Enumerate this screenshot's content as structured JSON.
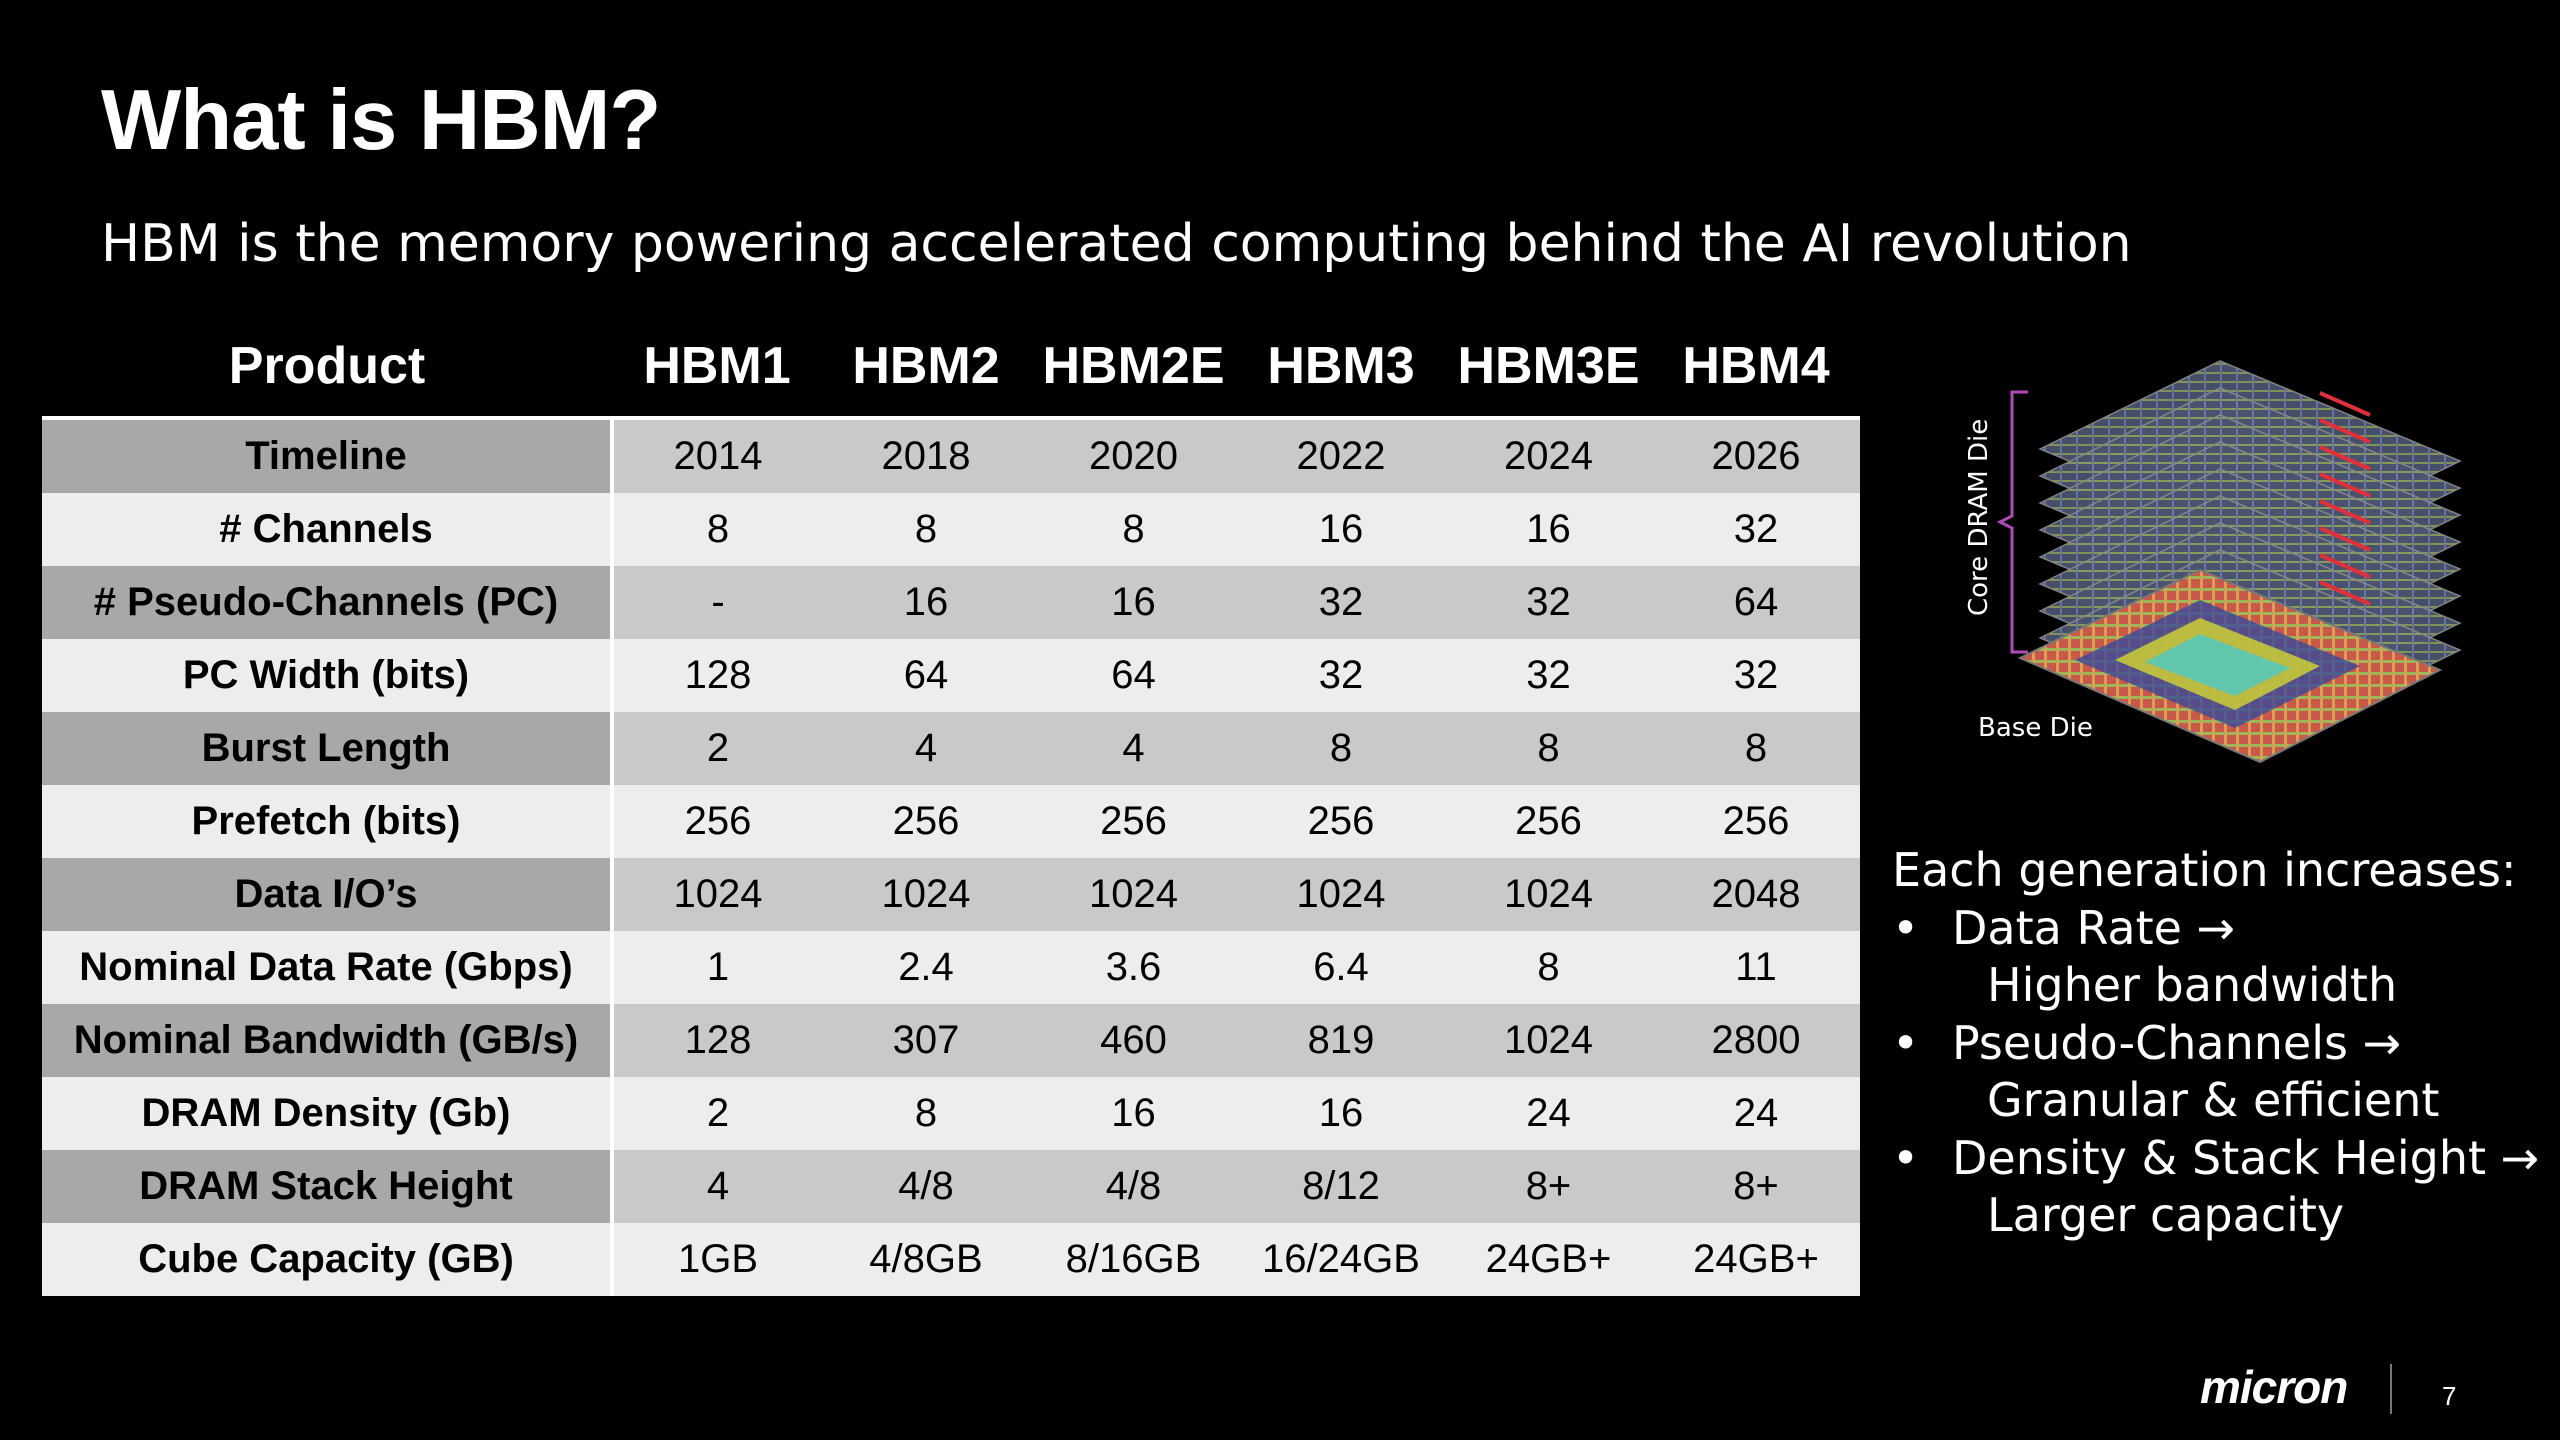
{
  "title": "What is HBM?",
  "subtitle": "HBM is the memory powering accelerated computing behind the AI revolution",
  "table": {
    "header": [
      "Product",
      "HBM1",
      "HBM2",
      "HBM2E",
      "HBM3",
      "HBM3E",
      "HBM4"
    ],
    "rows": [
      {
        "label": "Timeline",
        "values": [
          "2014",
          "2018",
          "2020",
          "2022",
          "2024",
          "2026"
        ]
      },
      {
        "label": "# Channels",
        "values": [
          "8",
          "8",
          "8",
          "16",
          "16",
          "32"
        ]
      },
      {
        "label": "# Pseudo-Channels (PC)",
        "values": [
          "-",
          "16",
          "16",
          "32",
          "32",
          "64"
        ]
      },
      {
        "label": "PC Width (bits)",
        "values": [
          "128",
          "64",
          "64",
          "32",
          "32",
          "32"
        ]
      },
      {
        "label": "Burst Length",
        "values": [
          "2",
          "4",
          "4",
          "8",
          "8",
          "8"
        ]
      },
      {
        "label": "Prefetch (bits)",
        "values": [
          "256",
          "256",
          "256",
          "256",
          "256",
          "256"
        ]
      },
      {
        "label": "Data I/O’s",
        "values": [
          "1024",
          "1024",
          "1024",
          "1024",
          "1024",
          "2048"
        ]
      },
      {
        "label": "Nominal Data Rate (Gbps)",
        "values": [
          "1",
          "2.4",
          "3.6",
          "6.4",
          "8",
          "11"
        ]
      },
      {
        "label": "Nominal Bandwidth (GB/s)",
        "values": [
          "128",
          "307",
          "460",
          "819",
          "1024",
          "2800"
        ]
      },
      {
        "label": "DRAM Density (Gb)",
        "values": [
          "2",
          "8",
          "16",
          "16",
          "24",
          "24"
        ]
      },
      {
        "label": "DRAM Stack Height",
        "values": [
          "4",
          "4/8",
          "4/8",
          "8/12",
          "8+",
          "8+"
        ]
      },
      {
        "label": "Cube Capacity (GB)",
        "values": [
          "1GB",
          "4/8GB",
          "8/16GB",
          "16/24GB",
          "24GB+",
          "24GB+"
        ]
      }
    ]
  },
  "figure": {
    "core_label": "Core DRAM Die",
    "base_label": "Base Die"
  },
  "bullets": {
    "heading": "Each generation increases:",
    "items": [
      {
        "main": "Data Rate →",
        "sub": "Higher bandwidth"
      },
      {
        "main": "Pseudo-Channels →",
        "sub": "Granular & efficient"
      },
      {
        "main": "Density & Stack Height →",
        "sub": "Larger capacity"
      }
    ]
  },
  "footer": {
    "logo": "micron",
    "page": "7"
  },
  "colors": {
    "background": "#000000",
    "row_dark": "#c9c9c9",
    "row_dark_label": "#a8a8a8",
    "row_light": "#ededed",
    "bracket": "#b04ab8"
  }
}
